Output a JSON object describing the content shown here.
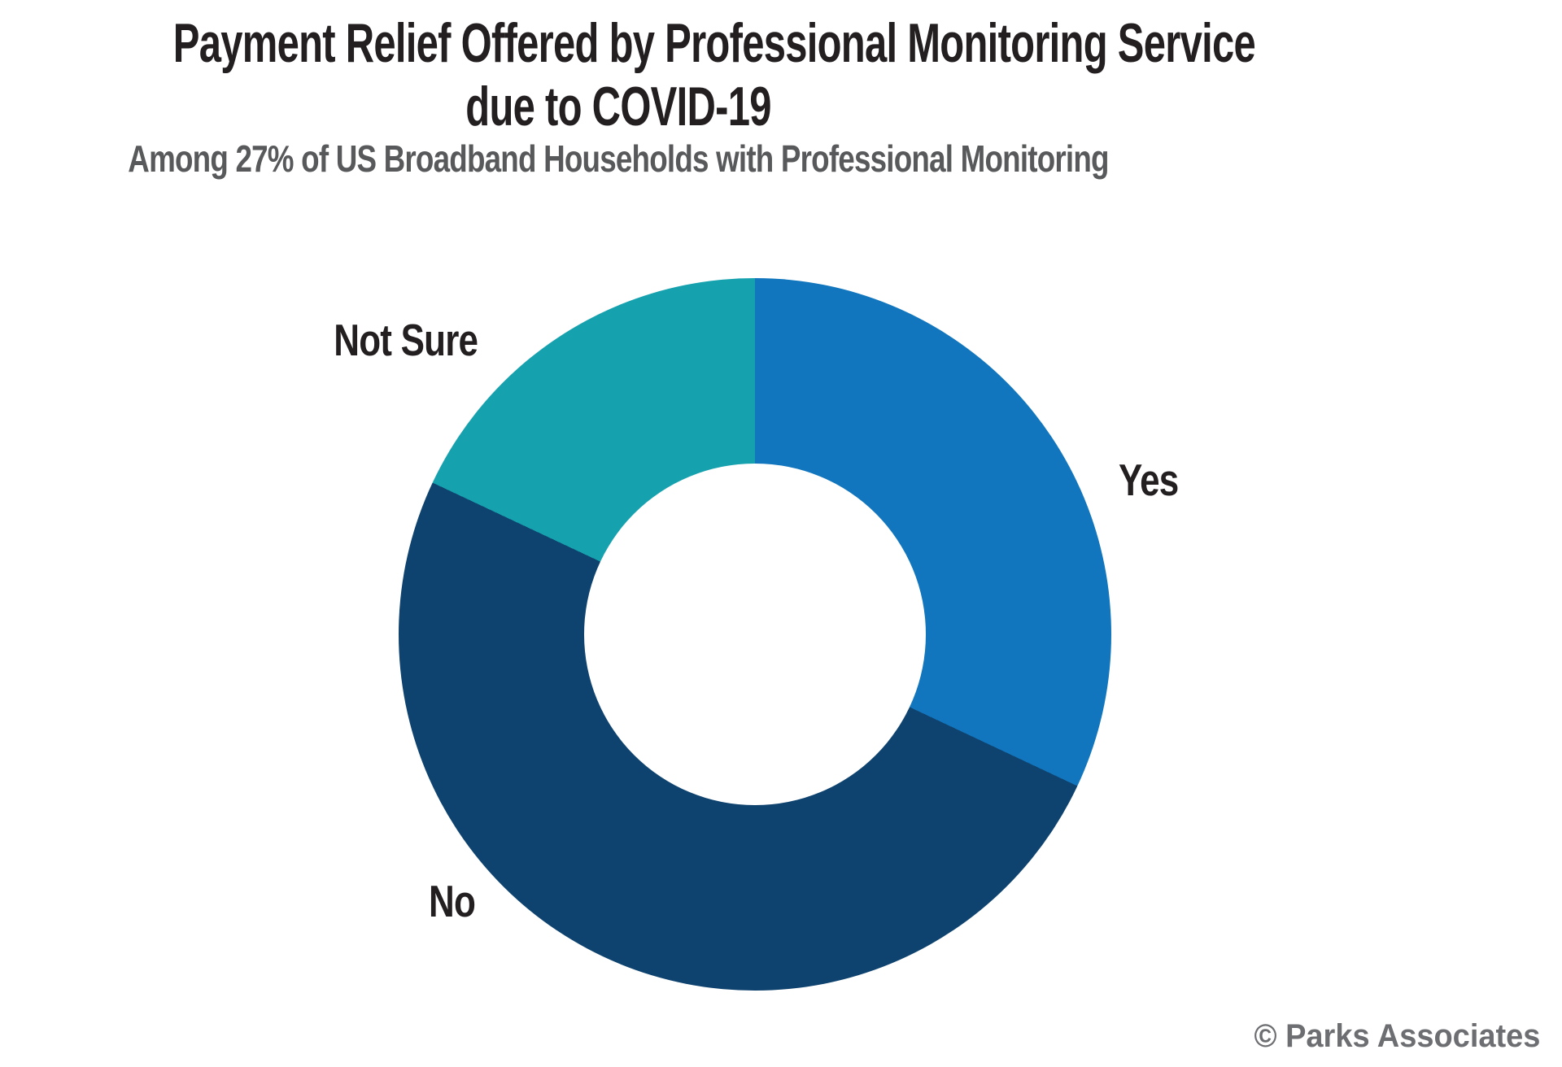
{
  "title": {
    "line1": "Payment Relief Offered by Professional Monitoring Service",
    "line2": "due to COVID-19"
  },
  "subtitle": "Among 27% of US Broadband Households with Professional Monitoring",
  "footer": {
    "copyright": "© Parks Associates"
  },
  "colors": {
    "yes": "#1176BD",
    "no": "#0F436F",
    "not_sure": "#16A1AE",
    "title": "#231F20",
    "subtitle": "#58595B",
    "copyright": "#6D6E71",
    "background": "#FFFFFF"
  },
  "chart_data": {
    "type": "pie",
    "subtype": "donut",
    "title": "Payment Relief Offered by Professional Monitoring Service due to COVID-19",
    "subtitle": "Among 27% of US Broadband Households with Professional Monitoring",
    "start_angle_deg": 0,
    "direction": "clockwise",
    "donut_hole_ratio": 0.48,
    "value_labels_shown": false,
    "values_estimated_from_angles": true,
    "legend_position": "labels-outside",
    "segments": [
      {
        "label": "Yes",
        "value": 32,
        "color": "#1176BD"
      },
      {
        "label": "No",
        "value": 50,
        "color": "#0F436F"
      },
      {
        "label": "Not Sure",
        "value": 18,
        "color": "#16A1AE"
      }
    ]
  }
}
